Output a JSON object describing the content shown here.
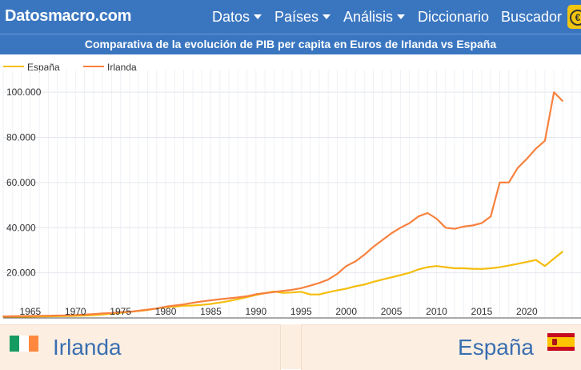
{
  "navbar": {
    "brand": "Datosmacro.com",
    "menu": [
      {
        "label": "Datos",
        "dropdown": true
      },
      {
        "label": "Países",
        "dropdown": true
      },
      {
        "label": "Análisis",
        "dropdown": true
      },
      {
        "label": "Diccionario",
        "dropdown": false
      },
      {
        "label": "Buscador",
        "dropdown": false
      }
    ],
    "currency_icon": "euro-icon",
    "currency_color": "#f1c40f"
  },
  "chart_data": {
    "type": "line",
    "title": "Comparativa de la evolución de PIB per capita en Euros de Irlanda vs España",
    "legend_position": "top-left",
    "grid": true,
    "xlim": [
      1962,
      2026
    ],
    "ylim": [
      0,
      110000
    ],
    "x_ticks": [
      1965,
      1970,
      1975,
      1980,
      1985,
      1990,
      1995,
      2000,
      2005,
      2010,
      2015,
      2020
    ],
    "y_ticks": [
      20000,
      40000,
      60000,
      80000,
      100000
    ],
    "y_tick_labels": [
      "20.000",
      "40.000",
      "60.000",
      "80.000",
      "100.000"
    ],
    "series": [
      {
        "name": "España",
        "color": "#f5bd0b",
        "x": [
          1960,
          1961,
          1962,
          1963,
          1964,
          1965,
          1966,
          1967,
          1968,
          1969,
          1970,
          1971,
          1972,
          1973,
          1974,
          1975,
          1976,
          1977,
          1978,
          1979,
          1980,
          1981,
          1982,
          1983,
          1984,
          1985,
          1986,
          1987,
          1988,
          1989,
          1990,
          1991,
          1992,
          1993,
          1994,
          1995,
          1996,
          1997,
          1998,
          1999,
          2000,
          2001,
          2002,
          2003,
          2004,
          2005,
          2006,
          2007,
          2008,
          2009,
          2010,
          2011,
          2012,
          2013,
          2014,
          2015,
          2016,
          2017,
          2018,
          2019,
          2020,
          2021,
          2022,
          2023,
          2024
        ],
        "values": [
          300,
          330,
          370,
          430,
          490,
          560,
          640,
          720,
          780,
          850,
          920,
          1050,
          1250,
          1550,
          1900,
          2300,
          2700,
          3100,
          3500,
          4200,
          4800,
          5000,
          5400,
          5500,
          5800,
          6200,
          6800,
          7500,
          8300,
          9200,
          10200,
          11000,
          11700,
          11100,
          11300,
          11600,
          10400,
          10400,
          11400,
          12200,
          13000,
          14000,
          14800,
          16000,
          17000,
          18000,
          19000,
          20000,
          21500,
          22500,
          23000,
          22500,
          22000,
          22000,
          21800,
          21700,
          22000,
          22500,
          23200,
          24000,
          24800,
          25700,
          23000,
          26300,
          29500
        ]
      },
      {
        "name": "Irlanda",
        "color": "#f7813e",
        "x": [
          1960,
          1961,
          1962,
          1963,
          1964,
          1965,
          1966,
          1967,
          1968,
          1969,
          1970,
          1971,
          1972,
          1973,
          1974,
          1975,
          1976,
          1977,
          1978,
          1979,
          1980,
          1981,
          1982,
          1983,
          1984,
          1985,
          1986,
          1987,
          1988,
          1989,
          1990,
          1991,
          1992,
          1993,
          1994,
          1995,
          1996,
          1997,
          1998,
          1999,
          2000,
          2001,
          2002,
          2003,
          2004,
          2005,
          2006,
          2007,
          2008,
          2009,
          2010,
          2011,
          2012,
          2013,
          2014,
          2015,
          2016,
          2017,
          2018,
          2019,
          2020,
          2021,
          2022,
          2023,
          2024
        ],
        "values": [
          600,
          630,
          680,
          740,
          800,
          880,
          950,
          1000,
          1050,
          1120,
          1300,
          1450,
          1700,
          2000,
          2200,
          2600,
          2700,
          3200,
          3700,
          4200,
          5000,
          5500,
          6000,
          6700,
          7300,
          7800,
          8300,
          8700,
          9100,
          9600,
          10500,
          11000,
          11500,
          12000,
          12500,
          13200,
          14300,
          15500,
          17000,
          19500,
          23000,
          25000,
          28000,
          31500,
          34500,
          37500,
          40000,
          42000,
          45000,
          46500,
          44000,
          40000,
          39500,
          40500,
          41000,
          42000,
          45000,
          60000,
          60000,
          66500,
          70500,
          75000,
          78500,
          100000,
          96000
        ]
      }
    ]
  },
  "comparison": {
    "left": {
      "name": "Irlanda",
      "flag_icon": "ireland-flag-icon"
    },
    "right": {
      "name": "España",
      "flag_icon": "spain-flag-icon"
    }
  }
}
